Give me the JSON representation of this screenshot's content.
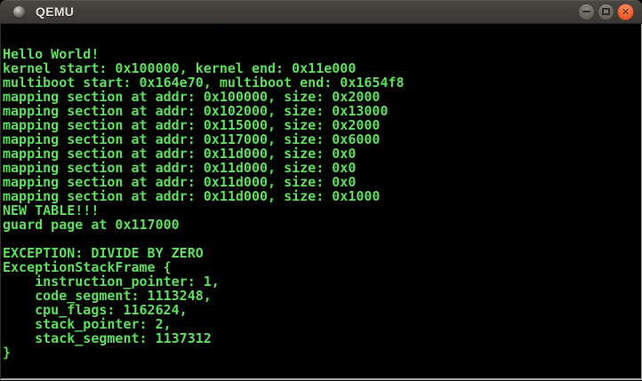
{
  "window": {
    "title": "QEMU",
    "controls": [
      {
        "name": "minimize",
        "glyph": "–"
      },
      {
        "name": "maximize",
        "glyph": "□"
      },
      {
        "name": "close",
        "glyph": "✕"
      }
    ]
  },
  "terminal": {
    "foreground": "#5ce05c",
    "background": "#000000",
    "lines": [
      "Hello World!",
      "kernel start: 0x100000, kernel end: 0x11e000",
      "multiboot start: 0x164e70, multiboot end: 0x1654f8",
      "mapping section at addr: 0x100000, size: 0x2000",
      "mapping section at addr: 0x102000, size: 0x13000",
      "mapping section at addr: 0x115000, size: 0x2000",
      "mapping section at addr: 0x117000, size: 0x6000",
      "mapping section at addr: 0x11d000, size: 0x0",
      "mapping section at addr: 0x11d000, size: 0x0",
      "mapping section at addr: 0x11d000, size: 0x0",
      "mapping section at addr: 0x11d000, size: 0x1000",
      "NEW TABLE!!!",
      "guard page at 0x117000",
      "",
      "EXCEPTION: DIVIDE BY ZERO",
      "ExceptionStackFrame {",
      "    instruction_pointer: 1,",
      "    code_segment: 1113248,",
      "    cpu_flags: 1162624,",
      "    stack_pointer: 2,",
      "    stack_segment: 1137312",
      "}"
    ]
  }
}
